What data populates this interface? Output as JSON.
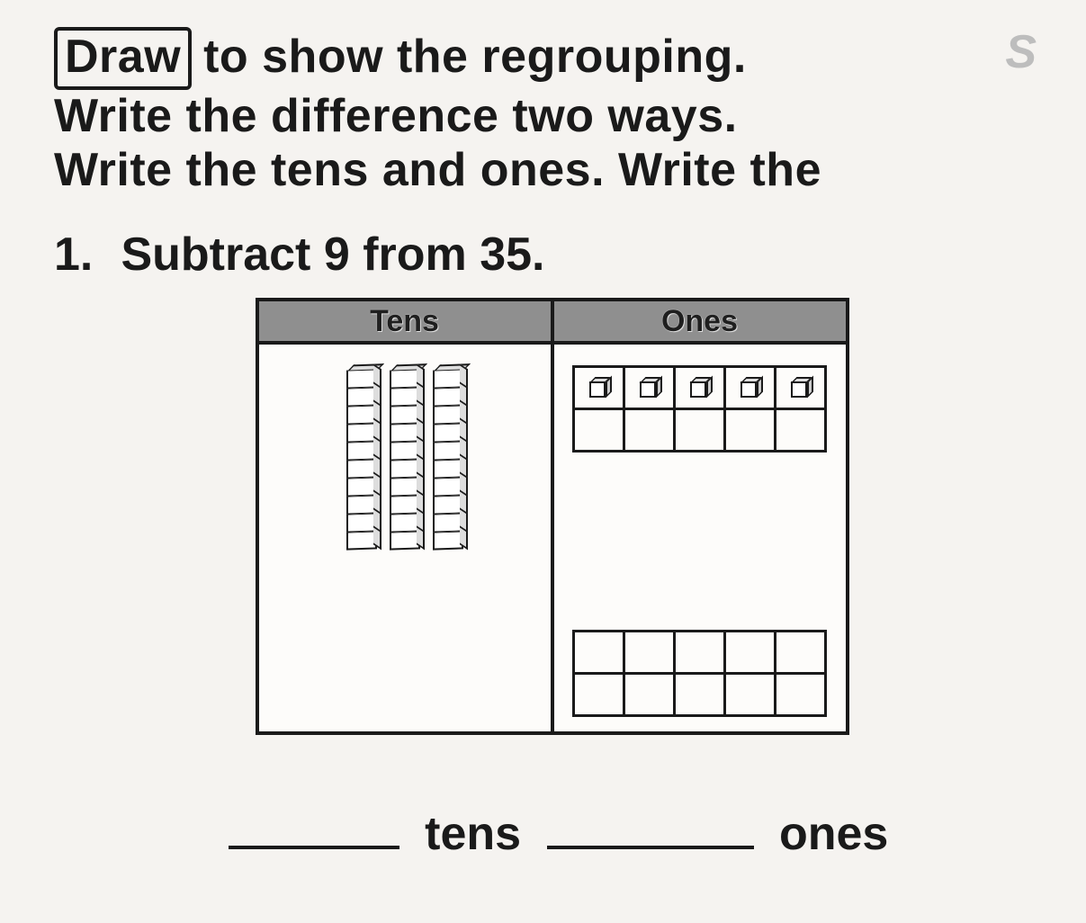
{
  "instructions": {
    "line1_boxed": "Draw",
    "line1_rest": "to show the regrouping.",
    "line2": "Write the difference two ways.",
    "line3": "Write the tens and ones. Write the"
  },
  "ghost_letter": "S",
  "problem": {
    "number": "1.",
    "text": "Subtract 9 from 35."
  },
  "place_value_table": {
    "headers": {
      "tens": "Tens",
      "ones": "Ones"
    },
    "tens_rods": 3,
    "rod_segments": 10,
    "top_frame_cubes": 5,
    "bottom_frame_cubes": 0,
    "frame_cols": 5,
    "frame_rows": 2,
    "colors": {
      "header_bg": "#8f8f8f",
      "border": "#1a1a1a",
      "page_bg": "#f5f3f0",
      "cell_bg": "#fdfcfa"
    }
  },
  "answer_line": {
    "tens_label": "tens",
    "ones_label": "ones"
  }
}
